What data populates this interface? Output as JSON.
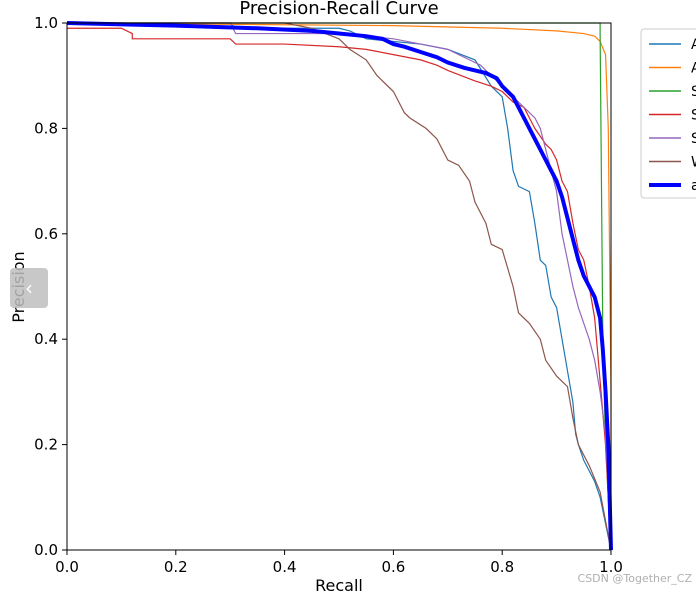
{
  "chart_data": {
    "type": "line",
    "title": "Precision-Recall Curve",
    "xlabel": "Recall",
    "ylabel": "Precision",
    "xlim": [
      0.0,
      1.0
    ],
    "ylim": [
      0.0,
      1.0
    ],
    "xticks": [
      "0.0",
      "0.2",
      "0.4",
      "0.6",
      "0.8",
      "1.0"
    ],
    "yticks": [
      "0.0",
      "0.2",
      "0.4",
      "0.6",
      "0.8",
      "1.0"
    ],
    "grid": false,
    "legend_position": "outside-right",
    "series": [
      {
        "name": "A",
        "color": "#1f77b4",
        "width": 1.2,
        "points": [
          [
            0,
            1.0
          ],
          [
            0.3,
            1.0
          ],
          [
            0.31,
            0.99
          ],
          [
            0.5,
            0.99
          ],
          [
            0.52,
            0.985
          ],
          [
            0.55,
            0.97
          ],
          [
            0.65,
            0.96
          ],
          [
            0.7,
            0.95
          ],
          [
            0.75,
            0.93
          ],
          [
            0.78,
            0.88
          ],
          [
            0.8,
            0.86
          ],
          [
            0.81,
            0.8
          ],
          [
            0.82,
            0.72
          ],
          [
            0.83,
            0.69
          ],
          [
            0.85,
            0.68
          ],
          [
            0.86,
            0.62
          ],
          [
            0.87,
            0.55
          ],
          [
            0.88,
            0.54
          ],
          [
            0.89,
            0.48
          ],
          [
            0.9,
            0.46
          ],
          [
            0.91,
            0.4
          ],
          [
            0.92,
            0.34
          ],
          [
            0.93,
            0.28
          ],
          [
            0.935,
            0.22
          ],
          [
            0.94,
            0.2
          ],
          [
            0.95,
            0.17
          ],
          [
            0.97,
            0.13
          ],
          [
            0.98,
            0.1
          ],
          [
            0.99,
            0.05
          ],
          [
            1.0,
            0.0
          ]
        ]
      },
      {
        "name": "A",
        "color": "#ff7f0e",
        "width": 1.2,
        "points": [
          [
            0,
            1.0
          ],
          [
            0.6,
            0.995
          ],
          [
            0.8,
            0.99
          ],
          [
            0.9,
            0.985
          ],
          [
            0.95,
            0.98
          ],
          [
            0.97,
            0.975
          ],
          [
            0.98,
            0.965
          ],
          [
            0.99,
            0.94
          ],
          [
            0.995,
            0.8
          ],
          [
            1.0,
            0.3
          ],
          [
            1.0,
            0.0
          ]
        ]
      },
      {
        "name": "S",
        "color": "#2ca02c",
        "width": 1.2,
        "points": [
          [
            0,
            1.0
          ],
          [
            0.98,
            1.0
          ],
          [
            0.98,
            0.98
          ],
          [
            0.985,
            0.4
          ],
          [
            0.99,
            0.2
          ],
          [
            1.0,
            0.0
          ]
        ]
      },
      {
        "name": "S",
        "color": "#d62728",
        "width": 1.2,
        "points": [
          [
            0,
            0.99
          ],
          [
            0.1,
            0.99
          ],
          [
            0.12,
            0.98
          ],
          [
            0.12,
            0.97
          ],
          [
            0.3,
            0.97
          ],
          [
            0.31,
            0.96
          ],
          [
            0.4,
            0.96
          ],
          [
            0.5,
            0.955
          ],
          [
            0.55,
            0.95
          ],
          [
            0.6,
            0.94
          ],
          [
            0.65,
            0.93
          ],
          [
            0.68,
            0.92
          ],
          [
            0.7,
            0.91
          ],
          [
            0.75,
            0.89
          ],
          [
            0.78,
            0.88
          ],
          [
            0.8,
            0.87
          ],
          [
            0.82,
            0.85
          ],
          [
            0.84,
            0.84
          ],
          [
            0.85,
            0.82
          ],
          [
            0.86,
            0.8
          ],
          [
            0.88,
            0.77
          ],
          [
            0.89,
            0.76
          ],
          [
            0.9,
            0.74
          ],
          [
            0.91,
            0.7
          ],
          [
            0.92,
            0.68
          ],
          [
            0.93,
            0.62
          ],
          [
            0.94,
            0.57
          ],
          [
            0.95,
            0.55
          ],
          [
            0.96,
            0.5
          ],
          [
            0.97,
            0.44
          ],
          [
            0.98,
            0.32
          ],
          [
            0.99,
            0.2
          ],
          [
            1.0,
            0.0
          ]
        ]
      },
      {
        "name": "S",
        "color": "#9467bd",
        "width": 1.2,
        "points": [
          [
            0,
            1.0
          ],
          [
            0.3,
            1.0
          ],
          [
            0.31,
            0.98
          ],
          [
            0.5,
            0.98
          ],
          [
            0.55,
            0.975
          ],
          [
            0.6,
            0.97
          ],
          [
            0.65,
            0.96
          ],
          [
            0.7,
            0.95
          ],
          [
            0.72,
            0.94
          ],
          [
            0.74,
            0.93
          ],
          [
            0.76,
            0.92
          ],
          [
            0.78,
            0.9
          ],
          [
            0.8,
            0.88
          ],
          [
            0.82,
            0.86
          ],
          [
            0.84,
            0.84
          ],
          [
            0.86,
            0.82
          ],
          [
            0.87,
            0.8
          ],
          [
            0.88,
            0.76
          ],
          [
            0.89,
            0.72
          ],
          [
            0.9,
            0.68
          ],
          [
            0.91,
            0.6
          ],
          [
            0.92,
            0.55
          ],
          [
            0.93,
            0.5
          ],
          [
            0.94,
            0.46
          ],
          [
            0.95,
            0.43
          ],
          [
            0.96,
            0.4
          ],
          [
            0.97,
            0.36
          ],
          [
            0.98,
            0.3
          ],
          [
            0.99,
            0.22
          ],
          [
            1.0,
            0.0
          ]
        ]
      },
      {
        "name": "W",
        "color": "#8c564b",
        "width": 1.2,
        "points": [
          [
            0,
            1.0
          ],
          [
            0.4,
            1.0
          ],
          [
            0.45,
            0.99
          ],
          [
            0.5,
            0.97
          ],
          [
            0.52,
            0.95
          ],
          [
            0.55,
            0.93
          ],
          [
            0.57,
            0.9
          ],
          [
            0.6,
            0.87
          ],
          [
            0.62,
            0.83
          ],
          [
            0.63,
            0.82
          ],
          [
            0.66,
            0.8
          ],
          [
            0.68,
            0.78
          ],
          [
            0.7,
            0.74
          ],
          [
            0.72,
            0.73
          ],
          [
            0.74,
            0.7
          ],
          [
            0.75,
            0.66
          ],
          [
            0.77,
            0.62
          ],
          [
            0.78,
            0.58
          ],
          [
            0.8,
            0.57
          ],
          [
            0.82,
            0.5
          ],
          [
            0.83,
            0.45
          ],
          [
            0.85,
            0.43
          ],
          [
            0.87,
            0.4
          ],
          [
            0.88,
            0.36
          ],
          [
            0.9,
            0.33
          ],
          [
            0.92,
            0.31
          ],
          [
            0.93,
            0.25
          ],
          [
            0.94,
            0.2
          ],
          [
            0.96,
            0.16
          ],
          [
            0.98,
            0.11
          ],
          [
            1.0,
            0.0
          ]
        ]
      },
      {
        "name": "a",
        "color": "#0000ff",
        "width": 4,
        "points": [
          [
            0,
            1.0
          ],
          [
            0.2,
            0.995
          ],
          [
            0.35,
            0.99
          ],
          [
            0.45,
            0.985
          ],
          [
            0.5,
            0.98
          ],
          [
            0.55,
            0.975
          ],
          [
            0.58,
            0.97
          ],
          [
            0.6,
            0.96
          ],
          [
            0.62,
            0.955
          ],
          [
            0.65,
            0.945
          ],
          [
            0.68,
            0.935
          ],
          [
            0.7,
            0.925
          ],
          [
            0.73,
            0.915
          ],
          [
            0.75,
            0.91
          ],
          [
            0.77,
            0.905
          ],
          [
            0.79,
            0.895
          ],
          [
            0.8,
            0.88
          ],
          [
            0.81,
            0.87
          ],
          [
            0.82,
            0.86
          ],
          [
            0.83,
            0.84
          ],
          [
            0.84,
            0.82
          ],
          [
            0.85,
            0.8
          ],
          [
            0.86,
            0.78
          ],
          [
            0.87,
            0.76
          ],
          [
            0.88,
            0.74
          ],
          [
            0.89,
            0.72
          ],
          [
            0.9,
            0.7
          ],
          [
            0.91,
            0.67
          ],
          [
            0.92,
            0.63
          ],
          [
            0.93,
            0.59
          ],
          [
            0.94,
            0.55
          ],
          [
            0.95,
            0.52
          ],
          [
            0.96,
            0.5
          ],
          [
            0.97,
            0.48
          ],
          [
            0.98,
            0.44
          ],
          [
            0.985,
            0.38
          ],
          [
            0.99,
            0.3
          ],
          [
            0.995,
            0.2
          ],
          [
            1.0,
            0.0
          ]
        ]
      }
    ]
  },
  "ui": {
    "watermark": "CSDN @Together_CZ",
    "nav_arrow": "‹"
  }
}
